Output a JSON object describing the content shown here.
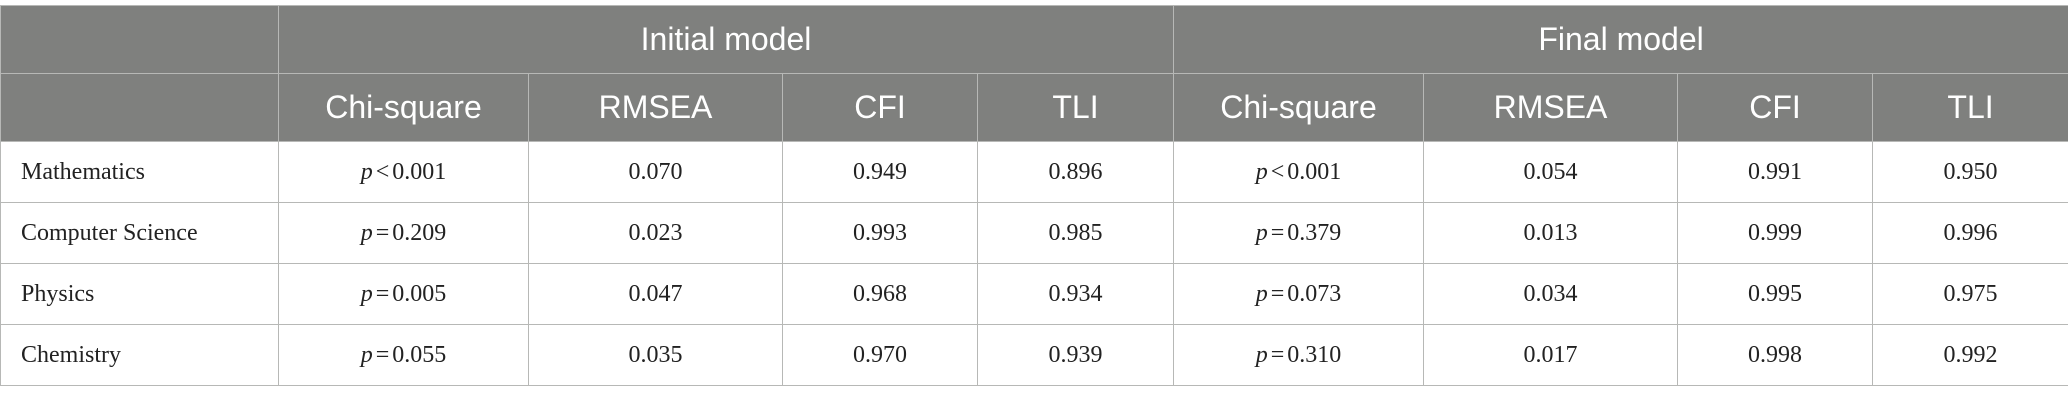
{
  "table": {
    "group_headers": [
      "Initial model",
      "Final model"
    ],
    "metric_headers": [
      "Chi-square",
      "RMSEA",
      "CFI",
      "TLI",
      "Chi-square",
      "RMSEA",
      "CFI",
      "TLI"
    ],
    "rows": [
      {
        "subject": "Mathematics",
        "initial": {
          "p_sym": "p",
          "p_op": "<",
          "p_val": "0.001",
          "rmsea": "0.070",
          "cfi": "0.949",
          "tli": "0.896"
        },
        "final": {
          "p_sym": "p",
          "p_op": "<",
          "p_val": "0.001",
          "rmsea": "0.054",
          "cfi": "0.991",
          "tli": "0.950"
        }
      },
      {
        "subject": "Computer Science",
        "initial": {
          "p_sym": "p",
          "p_op": "=",
          "p_val": "0.209",
          "rmsea": "0.023",
          "cfi": "0.993",
          "tli": "0.985"
        },
        "final": {
          "p_sym": "p",
          "p_op": "=",
          "p_val": "0.379",
          "rmsea": "0.013",
          "cfi": "0.999",
          "tli": "0.996"
        }
      },
      {
        "subject": "Physics",
        "initial": {
          "p_sym": "p",
          "p_op": "=",
          "p_val": "0.005",
          "rmsea": "0.047",
          "cfi": "0.968",
          "tli": "0.934"
        },
        "final": {
          "p_sym": "p",
          "p_op": "=",
          "p_val": "0.073",
          "rmsea": "0.034",
          "cfi": "0.995",
          "tli": "0.975"
        }
      },
      {
        "subject": "Chemistry",
        "initial": {
          "p_sym": "p",
          "p_op": "=",
          "p_val": "0.055",
          "rmsea": "0.035",
          "cfi": "0.970",
          "tli": "0.939"
        },
        "final": {
          "p_sym": "p",
          "p_op": "=",
          "p_val": "0.310",
          "rmsea": "0.017",
          "cfi": "0.998",
          "tli": "0.992"
        }
      }
    ]
  }
}
